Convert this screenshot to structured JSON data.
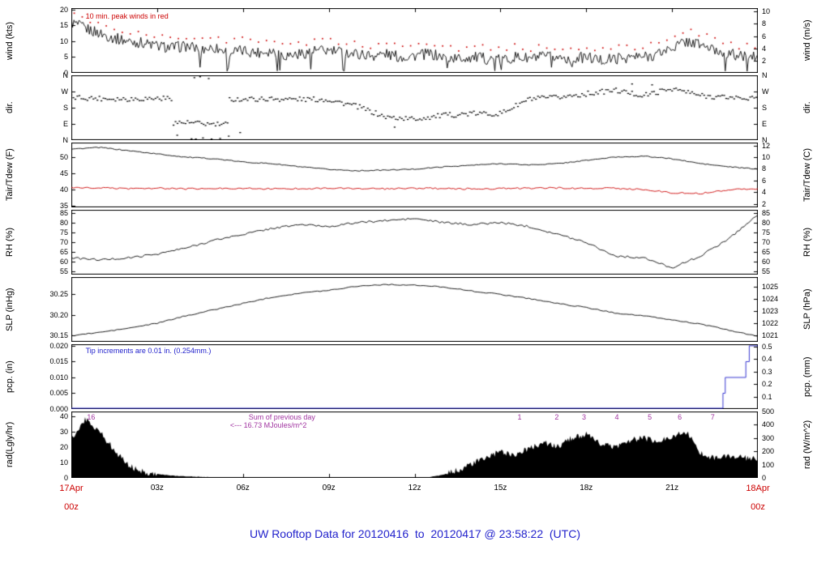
{
  "title": "UW Rooftop Data for 20120416  to  20120417 @ 23:58:22  (UTC)",
  "title_color": "#2222cc",
  "chart_data": {
    "type": "line",
    "layout": "7 stacked meteogram panels sharing one 24-hour x-axis; legend none; grid off",
    "x_axis": {
      "range": [
        0,
        24
      ],
      "ticks": [
        [
          3,
          "03z"
        ],
        [
          6,
          "06z"
        ],
        [
          9,
          "09z"
        ],
        [
          12,
          "12z"
        ],
        [
          15,
          "15z"
        ],
        [
          18,
          "18z"
        ],
        [
          21,
          "21z"
        ]
      ],
      "start_label": [
        "17Apr",
        "00z"
      ],
      "end_label": [
        "18Apr",
        "00z"
      ],
      "label_color": "#cc0000"
    },
    "panels": [
      {
        "id": "wind",
        "type": "line",
        "left_label": "wind (kts)",
        "right_label": "wind (m/s)",
        "left_range": [
          0,
          20.5
        ],
        "right_range": [
          0,
          10.55
        ],
        "left_ticks": [
          [
            0,
            "0"
          ],
          [
            5,
            "5"
          ],
          [
            10,
            "10"
          ],
          [
            15,
            "15"
          ],
          [
            20,
            "20"
          ]
        ],
        "right_ticks": [
          [
            2,
            "2"
          ],
          [
            4,
            "4"
          ],
          [
            6,
            "6"
          ],
          [
            8,
            "8"
          ],
          [
            10,
            "10"
          ]
        ],
        "annotations": [
          {
            "text": "10 min. peak winds in red",
            "x": 0.5,
            "y": 18.8,
            "color": "#cc0000"
          }
        ],
        "series": [
          {
            "name": "wind_speed_kts",
            "type": "noisy_line",
            "color": "#000000",
            "x_start": 0,
            "x_step": 0.5,
            "jitter": 1.8,
            "draw_step": 0.045,
            "dropouts": true,
            "y": [
              16,
              14,
              12.5,
              11,
              10,
              9.5,
              8.5,
              8,
              8.5,
              7.5,
              8,
              6.5,
              7,
              6.5,
              7,
              5.5,
              6,
              7,
              7,
              6.5,
              6,
              5.5,
              6,
              5,
              5.5,
              6,
              5,
              4.5,
              5,
              4.5,
              4,
              5,
              4.5,
              5,
              5,
              4.5,
              5,
              4,
              4.5,
              5,
              5,
              6,
              8,
              10,
              9,
              7,
              6,
              5,
              5
            ]
          },
          {
            "name": "peak_wind_kts",
            "type": "peaks",
            "color": "#cc0000",
            "offset": 2.2,
            "spread": 2.2,
            "step": 0.28
          }
        ]
      },
      {
        "id": "dir",
        "type": "scatter",
        "left_label": "dir.",
        "right_label": "dir.",
        "left_range": [
          0,
          360
        ],
        "right_range": [
          0,
          360
        ],
        "left_ticks": [
          [
            0,
            "N"
          ],
          [
            90,
            "E"
          ],
          [
            180,
            "S"
          ],
          [
            270,
            "W"
          ],
          [
            360,
            "N"
          ]
        ],
        "right_ticks": [
          [
            0,
            "N"
          ],
          [
            90,
            "E"
          ],
          [
            180,
            "S"
          ],
          [
            270,
            "W"
          ],
          [
            360,
            "N"
          ]
        ],
        "annotations": [],
        "series": [
          {
            "name": "wind_direction_deg",
            "type": "scatter",
            "color": "#000000",
            "x_start": 0,
            "x_step": 1,
            "jitter": 14,
            "draw_step": 0.07,
            "y": [
              240,
              235,
              232,
              235,
              100,
              90,
              230,
              232,
              230,
              228,
              190,
              130,
              120,
              140,
              150,
              150,
              230,
              240,
              260,
              280,
              250,
              290,
              250,
              240,
              235
            ],
            "extra_points": [
              [
                3.7,
                30
              ],
              [
                4.2,
                10
              ],
              [
                4.35,
                5
              ],
              [
                4.6,
                15
              ],
              [
                4.9,
                8
              ],
              [
                5.2,
                12
              ],
              [
                5.5,
                25
              ],
              [
                5.9,
                45
              ],
              [
                4.3,
                350
              ],
              [
                4.5,
                355
              ],
              [
                4.8,
                345
              ],
              [
                11.3,
                75
              ],
              [
                19.6,
                315
              ],
              [
                20.3,
                310
              ]
            ]
          }
        ]
      },
      {
        "id": "temp",
        "type": "line",
        "left_label": "Tair/Tdew (F)",
        "right_label": "Tair/Tdew (C)",
        "left_range": [
          34.5,
          54.5
        ],
        "right_range": [
          1.39,
          12.5
        ],
        "left_ticks": [
          [
            35,
            "35"
          ],
          [
            40,
            "40"
          ],
          [
            45,
            "45"
          ],
          [
            50,
            "50"
          ]
        ],
        "right_ticks": [
          [
            2,
            "2"
          ],
          [
            4,
            "4"
          ],
          [
            6,
            "6"
          ],
          [
            8,
            "8"
          ],
          [
            10,
            "10"
          ],
          [
            12,
            "12"
          ]
        ],
        "annotations": [],
        "series": [
          {
            "name": "Tair_F",
            "type": "noisy_line",
            "color": "#000000",
            "x_start": 0,
            "x_step": 1,
            "jitter": 0.15,
            "draw_step": 0.08,
            "y": [
              52.5,
              53,
              52,
              51,
              50,
              49.5,
              48.5,
              48,
              47,
              46.2,
              45.8,
              46,
              46.3,
              47,
              47.5,
              48,
              47.6,
              48,
              49,
              50,
              50.3,
              49.5,
              48,
              47,
              46.3
            ]
          },
          {
            "name": "Tdew_F",
            "type": "noisy_line",
            "color": "#cc0000",
            "x_start": 0,
            "x_step": 1,
            "jitter": 0.25,
            "draw_step": 0.08,
            "y": [
              40.5,
              40.5,
              40.3,
              40.4,
              40.2,
              40.3,
              40.4,
              40.2,
              40.3,
              40.4,
              40.3,
              40.2,
              40.4,
              40.3,
              40.2,
              40.3,
              40.4,
              40.5,
              40.3,
              40.4,
              40,
              39,
              38.8,
              40,
              40.3
            ]
          }
        ]
      },
      {
        "id": "rh",
        "type": "line",
        "left_label": "RH (%)",
        "right_label": "RH (%)",
        "left_range": [
          53.5,
          86.5
        ],
        "right_range": [
          53.5,
          86.5
        ],
        "left_ticks": [
          [
            55,
            "55"
          ],
          [
            60,
            "60"
          ],
          [
            65,
            "65"
          ],
          [
            70,
            "70"
          ],
          [
            75,
            "75"
          ],
          [
            80,
            "80"
          ],
          [
            85,
            "85"
          ]
        ],
        "right_ticks": [
          [
            55,
            "55"
          ],
          [
            60,
            "60"
          ],
          [
            65,
            "65"
          ],
          [
            70,
            "70"
          ],
          [
            75,
            "75"
          ],
          [
            80,
            "80"
          ],
          [
            85,
            "85"
          ]
        ],
        "annotations": [],
        "series": [
          {
            "name": "RH_pct",
            "type": "noisy_line",
            "color": "#000000",
            "x_start": 0,
            "x_step": 1,
            "jitter": 0.5,
            "draw_step": 0.08,
            "y": [
              62,
              61,
              62,
              64,
              67,
              71,
              74,
              77,
              79,
              78,
              80,
              81,
              82,
              80,
              79,
              80,
              78,
              74,
              70,
              63,
              62,
              57,
              63,
              72,
              84
            ]
          }
        ]
      },
      {
        "id": "slp",
        "type": "line",
        "left_label": "SLP (inHg)",
        "right_label": "SLP (hPa)",
        "left_range": [
          30.135,
          30.292
        ],
        "right_range": [
          1020.49,
          1025.81
        ],
        "left_ticks": [
          [
            30.15,
            "30.15"
          ],
          [
            30.2,
            "30.20"
          ],
          [
            30.25,
            "30.25"
          ]
        ],
        "right_ticks": [
          [
            1021,
            "1021"
          ],
          [
            1022,
            "1022"
          ],
          [
            1023,
            "1023"
          ],
          [
            1024,
            "1024"
          ],
          [
            1025,
            "1025"
          ]
        ],
        "annotations": [],
        "series": [
          {
            "name": "SLP_inHg",
            "type": "noisy_line",
            "color": "#000000",
            "x_start": 0,
            "x_step": 1,
            "jitter": 0.0012,
            "draw_step": 0.1,
            "y": [
              30.15,
              30.158,
              30.168,
              30.18,
              30.198,
              30.213,
              30.228,
              30.243,
              30.253,
              30.26,
              30.27,
              30.274,
              30.272,
              30.268,
              30.258,
              30.25,
              30.24,
              30.228,
              30.218,
              30.205,
              30.198,
              30.188,
              30.178,
              30.163,
              30.148
            ]
          }
        ]
      },
      {
        "id": "pcp",
        "type": "line",
        "left_label": "pcp. (in)",
        "right_label": "pcp. (mm)",
        "left_range": [
          0,
          0.0205
        ],
        "right_range": [
          0,
          0.52
        ],
        "left_ticks": [
          [
            0,
            "0.000"
          ],
          [
            0.005,
            "0.005"
          ],
          [
            0.01,
            "0.010"
          ],
          [
            0.015,
            "0.015"
          ],
          [
            0.02,
            "0.020"
          ]
        ],
        "right_ticks": [
          [
            0.1,
            "0.1"
          ],
          [
            0.2,
            "0.2"
          ],
          [
            0.3,
            "0.3"
          ],
          [
            0.4,
            "0.4"
          ],
          [
            0.5,
            "0.5"
          ]
        ],
        "annotations": [
          {
            "text": "Tip increments are 0.01 in. (0.254mm.)",
            "x": 0.5,
            "y": 0.0192,
            "color": "#2222cc"
          }
        ],
        "series": [
          {
            "name": "precip_in",
            "type": "step",
            "color": "#2222cc",
            "points": [
              [
                0,
                0
              ],
              [
                22.78,
                0
              ],
              [
                22.78,
                0.005
              ],
              [
                22.86,
                0.005
              ],
              [
                22.86,
                0.01
              ],
              [
                23.58,
                0.01
              ],
              [
                23.58,
                0.015
              ],
              [
                23.7,
                0.015
              ],
              [
                23.7,
                0.02
              ],
              [
                24,
                0.02
              ]
            ]
          }
        ]
      },
      {
        "id": "rad",
        "type": "area",
        "left_label": "rad(Lgly/hr)",
        "right_label": "rad (W/m^2)",
        "left_range": [
          0,
          43
        ],
        "right_range": [
          0,
          500
        ],
        "left_ticks": [
          [
            0,
            "0"
          ],
          [
            10,
            "10"
          ],
          [
            20,
            "20"
          ],
          [
            30,
            "30"
          ],
          [
            40,
            "40"
          ]
        ],
        "right_ticks": [
          [
            0,
            "0"
          ],
          [
            100,
            "100"
          ],
          [
            200,
            "200"
          ],
          [
            300,
            "300"
          ],
          [
            400,
            "400"
          ],
          [
            500,
            "500"
          ]
        ],
        "annotations": [
          {
            "text": "Sum of previous day",
            "x": 6.2,
            "y": 41.0,
            "color": "#a033a0"
          },
          {
            "text": "<--- 16.73 MJoules/m^2",
            "x": 5.55,
            "y": 35.5,
            "color": "#a033a0"
          },
          {
            "text": "16",
            "x": 0.55,
            "y": 41.0,
            "color": "#a033a0"
          },
          {
            "text": "1",
            "x": 15.6,
            "y": 41.0,
            "color": "#a033a0"
          },
          {
            "text": "2",
            "x": 16.9,
            "y": 41.0,
            "color": "#a033a0"
          },
          {
            "text": "3",
            "x": 17.85,
            "y": 41.0,
            "color": "#a033a0"
          },
          {
            "text": "4",
            "x": 19.0,
            "y": 41.0,
            "color": "#a033a0"
          },
          {
            "text": "5",
            "x": 20.15,
            "y": 41.0,
            "color": "#a033a0"
          },
          {
            "text": "6",
            "x": 21.2,
            "y": 41.0,
            "color": "#a033a0"
          },
          {
            "text": "7",
            "x": 22.35,
            "y": 41.0,
            "color": "#a033a0"
          }
        ],
        "series": [
          {
            "name": "solar_rad_ly_hr",
            "type": "area",
            "color": "#000000",
            "x_start": 0,
            "x_step": 0.5,
            "jitter": 2,
            "y": [
              25,
              38,
              30,
              18,
              8,
              4,
              2.5,
              1.5,
              1,
              0.7,
              0.5,
              0.4,
              0.3,
              0.3,
              0.2,
              0.2,
              0.2,
              0.2,
              0.2,
              0.2,
              0.2,
              0.2,
              0.2,
              0.2,
              0.3,
              0.5,
              2,
              5,
              9,
              13,
              17,
              15,
              19,
              23,
              20,
              26,
              28,
              22,
              20,
              24,
              26,
              23,
              27,
              30,
              16,
              13,
              14,
              13,
              12
            ]
          }
        ]
      }
    ]
  }
}
